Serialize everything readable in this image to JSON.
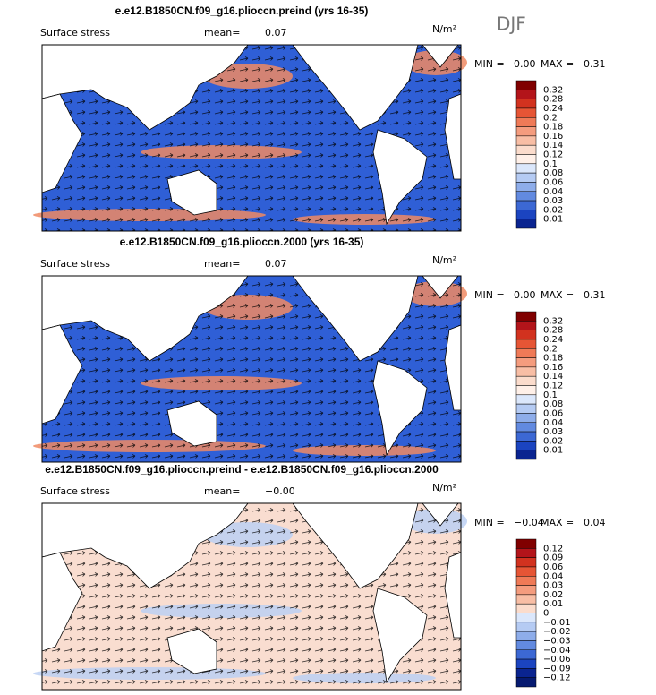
{
  "header": {
    "season": "DJF"
  },
  "panels": [
    {
      "title": "e.e12.B1850CN.f09_g16.plioccn.preind (yrs 16-35)",
      "label": "Surface stress",
      "mean_label": "mean=",
      "mean": "0.07",
      "units": "N/m²",
      "min_label": "MIN =",
      "min": "0.00",
      "max_label": "MAX =",
      "max": "0.31",
      "colorbar": {
        "labels": [
          "0.32",
          "0.28",
          "0.24",
          "0.2",
          "0.18",
          "0.16",
          "0.14",
          "0.12",
          "0.1",
          "0.08",
          "0.06",
          "0.04",
          "0.03",
          "0.02",
          "0.01"
        ],
        "colors": [
          "#800000",
          "#b3141a",
          "#d2321f",
          "#e65535",
          "#ef7a57",
          "#f49c7e",
          "#f8bea5",
          "#fbdccc",
          "#fff0e8",
          "#dbe7fb",
          "#b5cbf3",
          "#8eadea",
          "#628ae0",
          "#3c68d4",
          "#1b44c0",
          "#0a2490"
        ]
      },
      "map": {
        "base": "#2f5fd6",
        "accent": "#f08a63"
      }
    },
    {
      "title": "e.e12.B1850CN.f09_g16.plioccn.2000 (yrs 16-35)",
      "label": "Surface stress",
      "mean_label": "mean=",
      "mean": "0.07",
      "units": "N/m²",
      "min_label": "MIN =",
      "min": "0.00",
      "max_label": "MAX =",
      "max": "0.31",
      "colorbar": {
        "labels": [
          "0.32",
          "0.28",
          "0.24",
          "0.2",
          "0.18",
          "0.16",
          "0.14",
          "0.12",
          "0.1",
          "0.08",
          "0.06",
          "0.04",
          "0.03",
          "0.02",
          "0.01"
        ],
        "colors": [
          "#800000",
          "#b3141a",
          "#d2321f",
          "#e65535",
          "#ef7a57",
          "#f49c7e",
          "#f8bea5",
          "#fbdccc",
          "#fff0e8",
          "#dbe7fb",
          "#b5cbf3",
          "#8eadea",
          "#628ae0",
          "#3c68d4",
          "#1b44c0",
          "#0a2490"
        ]
      },
      "map": {
        "base": "#2f5fd6",
        "accent": "#f08a63"
      }
    },
    {
      "title": "e.e12.B1850CN.f09_g16.plioccn.preind - e.e12.B1850CN.f09_g16.plioccn.2000",
      "label": "Surface stress",
      "mean_label": "mean=",
      "mean": "−0.00",
      "units": "N/m²",
      "min_label": "MIN =",
      "min": "−0.04",
      "max_label": "MAX =",
      "max": "0.04",
      "colorbar": {
        "labels": [
          "0.12",
          "0.09",
          "0.06",
          "0.04",
          "0.03",
          "0.02",
          "0.01",
          "0",
          "−0.01",
          "−0.02",
          "−0.03",
          "−0.04",
          "−0.06",
          "−0.09",
          "−0.12"
        ],
        "colors": [
          "#800000",
          "#b3141a",
          "#d2321f",
          "#e65535",
          "#ef7a57",
          "#f49c7e",
          "#f8bea5",
          "#fbdccc",
          "#dbe7fb",
          "#b5cbf3",
          "#8eadea",
          "#628ae0",
          "#3c68d4",
          "#1b44c0",
          "#0a2490",
          "#061a70"
        ]
      },
      "map": {
        "base": "#f9ddd0",
        "accent": "#bcd0f3"
      }
    }
  ]
}
